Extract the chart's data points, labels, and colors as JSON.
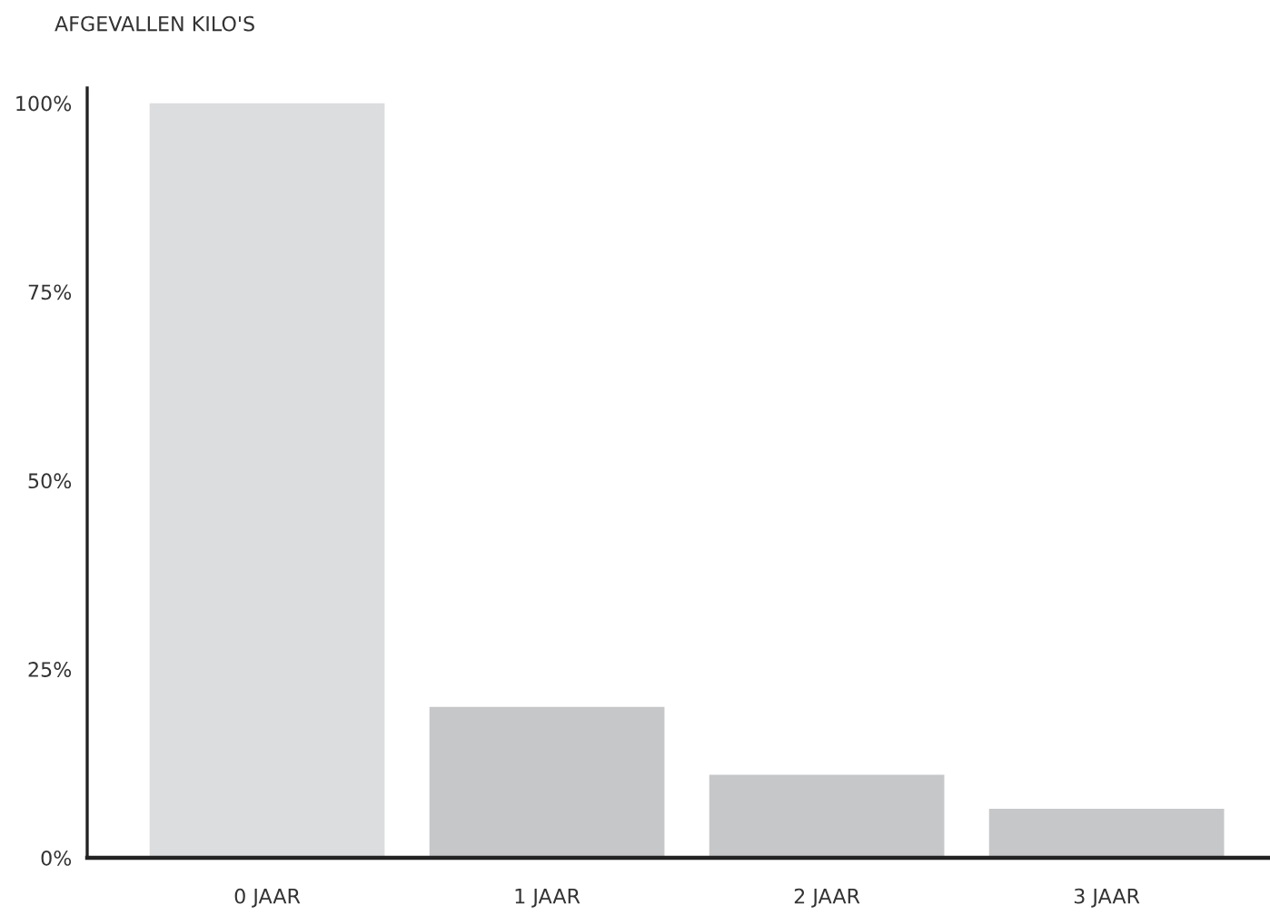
{
  "chart_data": {
    "type": "bar",
    "title": "AFGEVALLEN KILO'S",
    "categories": [
      "0 JAAR",
      "1 JAAR",
      "2 JAAR",
      "3 JAAR"
    ],
    "values": [
      100,
      20,
      11,
      6.5
    ],
    "colors": [
      "#dcdddf",
      "#c6c7c9",
      "#c6c7c9",
      "#c6c7c9"
    ],
    "ylim": [
      0,
      102
    ],
    "yticks": [
      {
        "value": 0,
        "label": "0%"
      },
      {
        "value": 25,
        "label": "25%"
      },
      {
        "value": 50,
        "label": "50%"
      },
      {
        "value": 75,
        "label": "75%"
      },
      {
        "value": 100,
        "label": "100%"
      }
    ],
    "grid": false,
    "legend": false
  }
}
